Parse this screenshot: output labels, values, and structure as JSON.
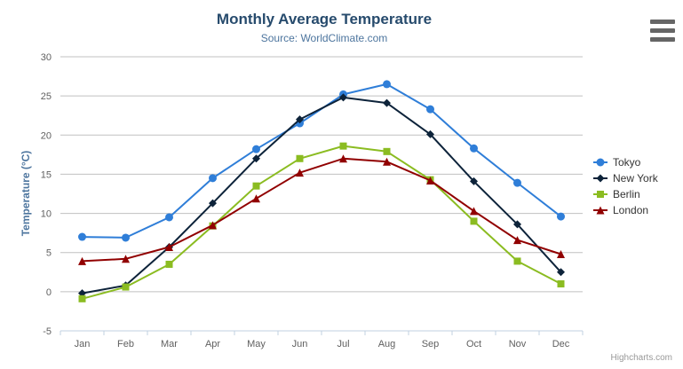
{
  "chart": {
    "title": "Monthly Average Temperature",
    "subtitle": "Source: WorldClimate.com",
    "credits": "Highcharts.com",
    "context_menu_icon": "hamburger-icon"
  },
  "chart_data": {
    "type": "line",
    "title": "Monthly Average Temperature",
    "subtitle": "Source: WorldClimate.com",
    "categories": [
      "Jan",
      "Feb",
      "Mar",
      "Apr",
      "May",
      "Jun",
      "Jul",
      "Aug",
      "Sep",
      "Oct",
      "Nov",
      "Dec"
    ],
    "xlabel": "",
    "ylabel": "Temperature (°C)",
    "ylim": [
      -5,
      30
    ],
    "ytick_step": 5,
    "yticks": [
      -5,
      0,
      5,
      10,
      15,
      20,
      25,
      30
    ],
    "grid": true,
    "legend_position": "right",
    "series": [
      {
        "name": "Tokyo",
        "color": "#2f7ed8",
        "marker": "circle",
        "values": [
          7.0,
          6.9,
          9.5,
          14.5,
          18.2,
          21.5,
          25.2,
          26.5,
          23.3,
          18.3,
          13.9,
          9.6
        ]
      },
      {
        "name": "New York",
        "color": "#0d233a",
        "marker": "diamond",
        "values": [
          -0.2,
          0.8,
          5.7,
          11.3,
          17.0,
          22.0,
          24.8,
          24.1,
          20.1,
          14.1,
          8.6,
          2.5
        ]
      },
      {
        "name": "Berlin",
        "color": "#8bbc21",
        "marker": "square",
        "values": [
          -0.9,
          0.6,
          3.5,
          8.4,
          13.5,
          17.0,
          18.6,
          17.9,
          14.3,
          9.0,
          3.9,
          1.0
        ]
      },
      {
        "name": "London",
        "color": "#910000",
        "marker": "triangle",
        "values": [
          3.9,
          4.2,
          5.7,
          8.5,
          11.9,
          15.2,
          17.0,
          16.6,
          14.2,
          10.3,
          6.6,
          4.8
        ]
      }
    ],
    "colors": {
      "grid_line": "#c0c0c0",
      "axis_line": "#c0d0e0",
      "tick_label": "#606060",
      "title": "#274b6d",
      "subtitle": "#4d759e",
      "legend_text": "#333333",
      "credits": "#999999"
    }
  }
}
